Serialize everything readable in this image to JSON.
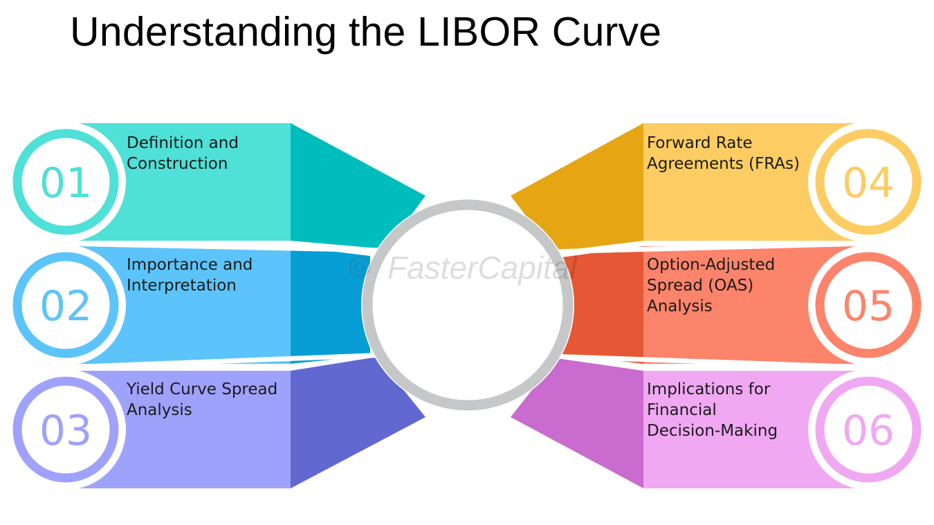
{
  "title": "Understanding the LIBOR Curve",
  "watermark": "FasterCapital",
  "items": [
    {
      "number": "01",
      "lines": [
        "Definition and",
        "Construction"
      ],
      "colors": {
        "light": "#4FE0D8",
        "dark": "#00BDBD",
        "ring": "#4FE0D8",
        "number": "#4FE0D8"
      }
    },
    {
      "number": "02",
      "lines": [
        "Importance and",
        "Interpretation"
      ],
      "colors": {
        "light": "#5CC4FB",
        "dark": "#079ED6",
        "ring": "#5CC4FB",
        "number": "#5CC4FB"
      }
    },
    {
      "number": "03",
      "lines": [
        "Yield Curve Spread",
        "Analysis"
      ],
      "colors": {
        "light": "#9FA2FA",
        "dark": "#6168D0",
        "ring": "#9FA2FA",
        "number": "#9FA2FA"
      }
    },
    {
      "number": "04",
      "lines": [
        "Forward Rate",
        "Agreements (FRAs)"
      ],
      "colors": {
        "light": "#FDCC62",
        "dark": "#E6A513",
        "ring": "#FDCC62",
        "number": "#FDCC62"
      }
    },
    {
      "number": "05",
      "lines": [
        "Option-Adjusted",
        "Spread (OAS)",
        "Analysis"
      ],
      "colors": {
        "light": "#FC846B",
        "dark": "#E65735",
        "ring": "#FC846B",
        "number": "#FC846B"
      }
    },
    {
      "number": "06",
      "lines": [
        "Implications for",
        "Financial",
        "Decision-Making"
      ],
      "colors": {
        "light": "#F0A8F2",
        "dark": "#C96BCF",
        "ring": "#F0A8F2",
        "number": "#F0A8F2"
      }
    }
  ],
  "center_ring_color": "#C6C7C8"
}
